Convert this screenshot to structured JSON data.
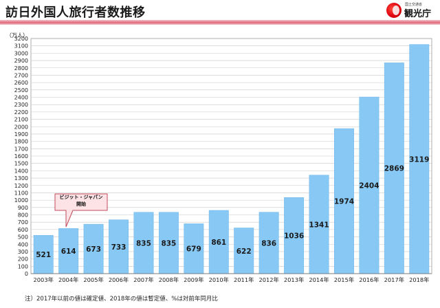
{
  "header": {
    "title": "訪日外国人旅行者数推移"
  },
  "logo": {
    "subtitle": "国土交通省",
    "name": "観光庁"
  },
  "unit_label": "（万人）",
  "footnote": "注）2017年以前の値は確定値、2018年の値は暫定値、%は対前年同月比",
  "callout": {
    "line1": "ビジット・ジャパン",
    "line2": "開始"
  },
  "colors": {
    "bar": "#88c8f4",
    "bar_edge": "#6fb6e8",
    "grid": "#c8c8c8",
    "accent": "#e06a7b"
  },
  "chart_data": {
    "type": "bar",
    "title": "訪日外国人旅行者数推移",
    "ylabel": "（万人）",
    "xlabel": "",
    "categories": [
      "2003年",
      "2004年",
      "2005年",
      "2006年",
      "2007年",
      "2008年",
      "2009年",
      "2010年",
      "2011年",
      "2012年",
      "2013年",
      "2014年",
      "2015年",
      "2016年",
      "2017年",
      "2018年"
    ],
    "values": [
      521,
      614,
      673,
      733,
      835,
      835,
      679,
      861,
      622,
      836,
      1036,
      1341,
      1974,
      2404,
      2869,
      3119
    ],
    "ylim": [
      0,
      3200
    ],
    "ytick_step": 100,
    "grid": true,
    "legend": "none"
  }
}
